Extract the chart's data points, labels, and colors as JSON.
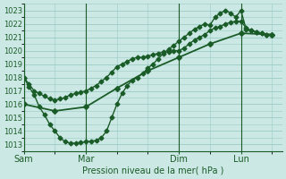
{
  "background_color": "#cce8e4",
  "grid_color": "#99ccc6",
  "line_color": "#1a5c28",
  "title": "Pression niveau de la mer( hPa )",
  "ylim": [
    1012.5,
    1023.5
  ],
  "yticks": [
    1013,
    1014,
    1015,
    1016,
    1017,
    1018,
    1019,
    1020,
    1021,
    1022,
    1023
  ],
  "xtick_labels": [
    "Sam",
    "Mar",
    "Dim",
    "Lun"
  ],
  "xtick_positions": [
    0,
    12,
    30,
    42
  ],
  "xlim": [
    0,
    50
  ],
  "series1_x": [
    0,
    1,
    2,
    3,
    4,
    5,
    6,
    7,
    8,
    9,
    10,
    11,
    12,
    13,
    14,
    15,
    16,
    17,
    18,
    19,
    20,
    21,
    22,
    23,
    24,
    25,
    26,
    27,
    28,
    29,
    30,
    31,
    32,
    33,
    34,
    35,
    36,
    37,
    38,
    39,
    40,
    41,
    42,
    43,
    44,
    45,
    46,
    47,
    48
  ],
  "series1_y": [
    1018.0,
    1017.5,
    1017.0,
    1016.8,
    1016.6,
    1016.4,
    1016.3,
    1016.4,
    1016.5,
    1016.7,
    1016.8,
    1016.9,
    1017.0,
    1017.2,
    1017.4,
    1017.7,
    1018.0,
    1018.4,
    1018.8,
    1019.0,
    1019.2,
    1019.4,
    1019.5,
    1019.5,
    1019.6,
    1019.7,
    1019.8,
    1019.9,
    1019.9,
    1020.0,
    1020.0,
    1020.2,
    1020.5,
    1020.8,
    1021.0,
    1021.2,
    1021.5,
    1021.7,
    1021.8,
    1022.0,
    1022.1,
    1022.2,
    1022.2,
    1021.7,
    1021.5,
    1021.4,
    1021.3,
    1021.2,
    1021.2
  ],
  "series2_x": [
    0,
    1,
    2,
    3,
    4,
    5,
    6,
    7,
    8,
    9,
    10,
    11,
    12,
    13,
    14,
    15,
    16,
    17,
    18,
    19,
    20,
    21,
    22,
    23,
    24,
    25,
    26,
    27,
    28,
    29,
    30,
    31,
    32,
    33,
    34,
    35,
    36,
    37,
    38,
    39,
    40,
    41,
    42,
    43,
    44,
    45,
    46,
    47,
    48
  ],
  "series2_y": [
    1018.0,
    1017.3,
    1016.7,
    1015.8,
    1015.2,
    1014.5,
    1014.0,
    1013.5,
    1013.2,
    1013.1,
    1013.1,
    1013.15,
    1013.2,
    1013.25,
    1013.3,
    1013.5,
    1014.0,
    1015.0,
    1016.0,
    1016.8,
    1017.4,
    1017.8,
    1018.0,
    1018.3,
    1018.7,
    1019.0,
    1019.4,
    1019.8,
    1020.1,
    1020.4,
    1020.7,
    1021.0,
    1021.3,
    1021.6,
    1021.8,
    1022.0,
    1021.9,
    1022.5,
    1022.8,
    1023.0,
    1022.8,
    1022.5,
    1023.0,
    1021.6,
    1021.5,
    1021.4,
    1021.3,
    1021.2,
    1021.2
  ],
  "series3_x": [
    0,
    6,
    12,
    18,
    24,
    30,
    36,
    42,
    48
  ],
  "series3_y": [
    1016.0,
    1015.5,
    1015.8,
    1017.2,
    1018.5,
    1019.5,
    1020.5,
    1021.3,
    1021.2
  ],
  "vline_positions": [
    0,
    12,
    30,
    42
  ],
  "markersize": 2.5,
  "linewidth": 1.0
}
